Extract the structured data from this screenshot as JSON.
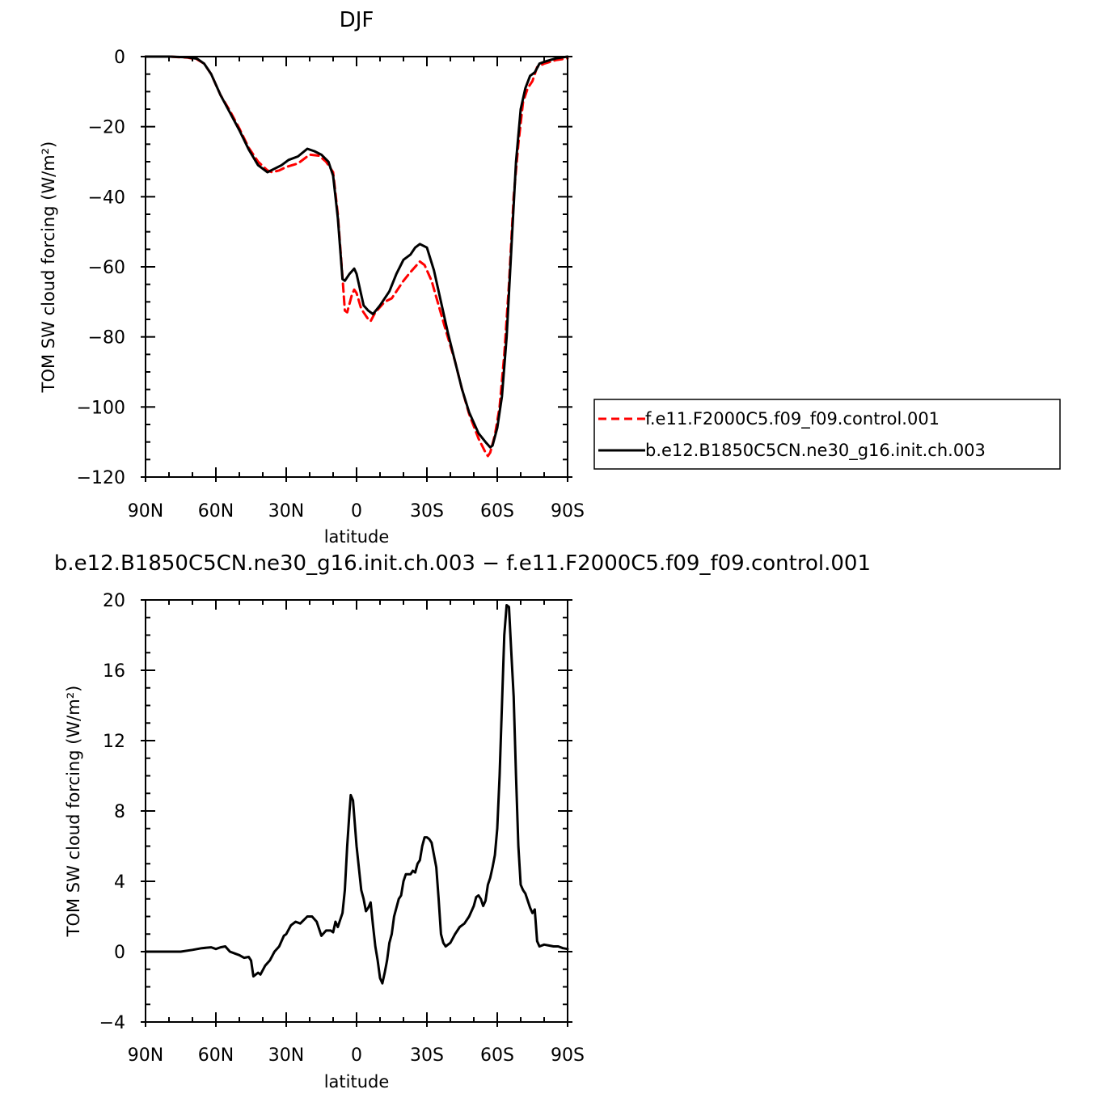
{
  "chart_data": [
    {
      "type": "line",
      "title": "DJF",
      "xlabel": "latitude",
      "ylabel": "TOM SW cloud forcing (W/m²)",
      "ylim": [
        -120,
        0
      ],
      "xlim": [
        -90,
        90
      ],
      "x_ticks": [
        -90,
        -60,
        -30,
        0,
        30,
        60,
        90
      ],
      "x_tick_labels": [
        "90N",
        "60N",
        "30N",
        "0",
        "30S",
        "60S",
        "90S"
      ],
      "y_ticks": [
        0,
        -20,
        -40,
        -60,
        -80,
        -100,
        -120
      ],
      "y_tick_labels": [
        "0",
        "−20",
        "−40",
        "−60",
        "−80",
        "−100",
        "−120"
      ],
      "grid": false,
      "legend_placement": "right",
      "series": [
        {
          "name": "f.e11.F2000C5.f09_f09.control.001",
          "color": "#ff0000",
          "dash": true,
          "points": [
            [
              -90,
              0
            ],
            [
              -80,
              0
            ],
            [
              -72,
              -0.3
            ],
            [
              -68,
              -0.8
            ],
            [
              -65,
              -2
            ],
            [
              -62,
              -5
            ],
            [
              -58,
              -11
            ],
            [
              -54,
              -15.5
            ],
            [
              -50,
              -20.5
            ],
            [
              -46,
              -26
            ],
            [
              -42,
              -30
            ],
            [
              -38,
              -32.5
            ],
            [
              -36,
              -33
            ],
            [
              -33,
              -32.5
            ],
            [
              -30,
              -31.5
            ],
            [
              -25,
              -30.5
            ],
            [
              -20,
              -28
            ],
            [
              -16,
              -28.3
            ],
            [
              -13,
              -30
            ],
            [
              -10,
              -33
            ],
            [
              -8,
              -45
            ],
            [
              -6,
              -63
            ],
            [
              -5,
              -72.5
            ],
            [
              -4,
              -73
            ],
            [
              -2,
              -68
            ],
            [
              -1,
              -66.5
            ],
            [
              0,
              -67.5
            ],
            [
              2,
              -72
            ],
            [
              5,
              -75
            ],
            [
              6,
              -75.5
            ],
            [
              8,
              -73
            ],
            [
              12,
              -70
            ],
            [
              15,
              -69
            ],
            [
              20,
              -64
            ],
            [
              23,
              -61.5
            ],
            [
              25,
              -60
            ],
            [
              27,
              -58.5
            ],
            [
              29,
              -59.5
            ],
            [
              32,
              -64
            ],
            [
              35,
              -71
            ],
            [
              38,
              -78
            ],
            [
              42,
              -87
            ],
            [
              45,
              -95
            ],
            [
              48,
              -102
            ],
            [
              52,
              -109
            ],
            [
              55,
              -113
            ],
            [
              56,
              -114
            ],
            [
              57,
              -113
            ],
            [
              59,
              -108
            ],
            [
              61,
              -100
            ],
            [
              63,
              -85
            ],
            [
              65,
              -65
            ],
            [
              67,
              -40
            ],
            [
              69,
              -25
            ],
            [
              71,
              -13
            ],
            [
              73,
              -9
            ],
            [
              75,
              -7
            ],
            [
              77,
              -3
            ],
            [
              80,
              -2
            ],
            [
              85,
              -1
            ],
            [
              90,
              -0.5
            ]
          ]
        },
        {
          "name": "b.e12.B1850C5CN.ne30_g16.init.ch.003",
          "color": "#000000",
          "dash": false,
          "points": [
            [
              -90,
              0
            ],
            [
              -80,
              0
            ],
            [
              -72,
              -0.2
            ],
            [
              -68,
              -0.6
            ],
            [
              -65,
              -2
            ],
            [
              -62,
              -5
            ],
            [
              -58,
              -11
            ],
            [
              -54,
              -16
            ],
            [
              -50,
              -21
            ],
            [
              -46,
              -26.5
            ],
            [
              -42,
              -31
            ],
            [
              -38,
              -33
            ],
            [
              -35,
              -32
            ],
            [
              -32,
              -31
            ],
            [
              -29,
              -29.5
            ],
            [
              -25,
              -28.5
            ],
            [
              -21,
              -26.3
            ],
            [
              -18,
              -27
            ],
            [
              -15,
              -28
            ],
            [
              -12,
              -30
            ],
            [
              -10,
              -34
            ],
            [
              -8,
              -46
            ],
            [
              -6,
              -63.5
            ],
            [
              -5,
              -64
            ],
            [
              -3,
              -62
            ],
            [
              -1,
              -60.5
            ],
            [
              0,
              -62
            ],
            [
              2,
              -68
            ],
            [
              3,
              -71
            ],
            [
              5,
              -72.5
            ],
            [
              7,
              -73.5
            ],
            [
              10,
              -71
            ],
            [
              14,
              -67
            ],
            [
              17,
              -62
            ],
            [
              20,
              -58
            ],
            [
              23,
              -56.5
            ],
            [
              25,
              -54.5
            ],
            [
              27,
              -53.5
            ],
            [
              30,
              -54.5
            ],
            [
              33,
              -61
            ],
            [
              36,
              -70
            ],
            [
              39,
              -79
            ],
            [
              42,
              -87
            ],
            [
              45,
              -95
            ],
            [
              48,
              -101.5
            ],
            [
              52,
              -107.5
            ],
            [
              55,
              -110
            ],
            [
              57,
              -111.5
            ],
            [
              58,
              -111
            ],
            [
              60,
              -106
            ],
            [
              62,
              -97
            ],
            [
              64,
              -80
            ],
            [
              66,
              -55
            ],
            [
              68,
              -30
            ],
            [
              70,
              -15
            ],
            [
              72,
              -9
            ],
            [
              74,
              -5.5
            ],
            [
              76,
              -4.5
            ],
            [
              78,
              -2
            ],
            [
              80,
              -1.5
            ],
            [
              85,
              -0.5
            ],
            [
              90,
              0
            ]
          ]
        }
      ]
    },
    {
      "type": "line",
      "title": "b.e12.B1850C5CN.ne30_g16.init.ch.003 − f.e11.F2000C5.f09_f09.control.001",
      "xlabel": "latitude",
      "ylabel": "TOM SW cloud forcing (W/m²)",
      "ylim": [
        -4,
        20
      ],
      "xlim": [
        -90,
        90
      ],
      "x_ticks": [
        -90,
        -60,
        -30,
        0,
        30,
        60,
        90
      ],
      "x_tick_labels": [
        "90N",
        "60N",
        "30N",
        "0",
        "30S",
        "60S",
        "90S"
      ],
      "y_ticks": [
        20,
        16,
        12,
        8,
        4,
        0,
        -4
      ],
      "y_tick_labels": [
        "20",
        "16",
        "12",
        "8",
        "4",
        "0",
        "−4"
      ],
      "grid": false,
      "series": [
        {
          "color": "#000000",
          "dash": false,
          "points": [
            [
              -90,
              0
            ],
            [
              -75,
              0
            ],
            [
              -70,
              0.1
            ],
            [
              -66,
              0.2
            ],
            [
              -62,
              0.25
            ],
            [
              -60,
              0.15
            ],
            [
              -58,
              0.25
            ],
            [
              -56,
              0.3
            ],
            [
              -54,
              0
            ],
            [
              -52,
              -0.1
            ],
            [
              -50,
              -0.2
            ],
            [
              -48,
              -0.35
            ],
            [
              -46,
              -0.3
            ],
            [
              -45,
              -0.5
            ],
            [
              -44,
              -1.4
            ],
            [
              -42,
              -1.2
            ],
            [
              -41,
              -1.3
            ],
            [
              -39,
              -0.8
            ],
            [
              -37,
              -0.5
            ],
            [
              -35,
              0
            ],
            [
              -33,
              0.3
            ],
            [
              -31,
              0.9
            ],
            [
              -30,
              1
            ],
            [
              -28,
              1.5
            ],
            [
              -26,
              1.7
            ],
            [
              -24,
              1.6
            ],
            [
              -21,
              2
            ],
            [
              -19,
              2
            ],
            [
              -17,
              1.7
            ],
            [
              -15,
              0.9
            ],
            [
              -13,
              1.2
            ],
            [
              -11,
              1.2
            ],
            [
              -10,
              1.1
            ],
            [
              -9,
              1.7
            ],
            [
              -8,
              1.4
            ],
            [
              -7,
              1.8
            ],
            [
              -6,
              2.2
            ],
            [
              -5,
              3.5
            ],
            [
              -4,
              6
            ],
            [
              -3,
              8
            ],
            [
              -2.5,
              8.9
            ],
            [
              -1.5,
              8.6
            ],
            [
              0,
              6
            ],
            [
              2,
              3.5
            ],
            [
              3,
              3
            ],
            [
              4,
              2.3
            ],
            [
              5,
              2.5
            ],
            [
              6,
              2.8
            ],
            [
              7,
              1.5
            ],
            [
              8,
              0.3
            ],
            [
              9,
              -0.5
            ],
            [
              10,
              -1.5
            ],
            [
              11,
              -1.8
            ],
            [
              12,
              -1.2
            ],
            [
              13,
              -0.5
            ],
            [
              14,
              0.5
            ],
            [
              15,
              1
            ],
            [
              16,
              2
            ],
            [
              17,
              2.5
            ],
            [
              18,
              3
            ],
            [
              19,
              3.2
            ],
            [
              20,
              4
            ],
            [
              21,
              4.4
            ],
            [
              22,
              4.4
            ],
            [
              23,
              4.4
            ],
            [
              24,
              4.6
            ],
            [
              25,
              4.5
            ],
            [
              26,
              5
            ],
            [
              27,
              5.2
            ],
            [
              28,
              6
            ],
            [
              29,
              6.5
            ],
            [
              30,
              6.5
            ],
            [
              31,
              6.4
            ],
            [
              32,
              6.2
            ],
            [
              33,
              5.5
            ],
            [
              34,
              4.8
            ],
            [
              35,
              3
            ],
            [
              36,
              1
            ],
            [
              37,
              0.5
            ],
            [
              38,
              0.3
            ],
            [
              40,
              0.5
            ],
            [
              42,
              1
            ],
            [
              44,
              1.4
            ],
            [
              46,
              1.6
            ],
            [
              48,
              2
            ],
            [
              50,
              2.6
            ],
            [
              51,
              3.1
            ],
            [
              52,
              3.2
            ],
            [
              53,
              3
            ],
            [
              54,
              2.6
            ],
            [
              55,
              2.9
            ],
            [
              56,
              3.8
            ],
            [
              57,
              4.2
            ],
            [
              58,
              4.8
            ],
            [
              59,
              5.5
            ],
            [
              60,
              7
            ],
            [
              61,
              10
            ],
            [
              62,
              14
            ],
            [
              63,
              18
            ],
            [
              64,
              19.7
            ],
            [
              65,
              19.6
            ],
            [
              66,
              17
            ],
            [
              67,
              14.5
            ],
            [
              68,
              10
            ],
            [
              69,
              6
            ],
            [
              70,
              3.8
            ],
            [
              71,
              3.5
            ],
            [
              72,
              3.3
            ],
            [
              73,
              2.9
            ],
            [
              74,
              2.5
            ],
            [
              75,
              2.2
            ],
            [
              76,
              2.4
            ],
            [
              77,
              0.6
            ],
            [
              78,
              0.3
            ],
            [
              80,
              0.4
            ],
            [
              82,
              0.35
            ],
            [
              84,
              0.3
            ],
            [
              86,
              0.3
            ],
            [
              88,
              0.2
            ],
            [
              90,
              0.15
            ]
          ]
        }
      ]
    }
  ]
}
